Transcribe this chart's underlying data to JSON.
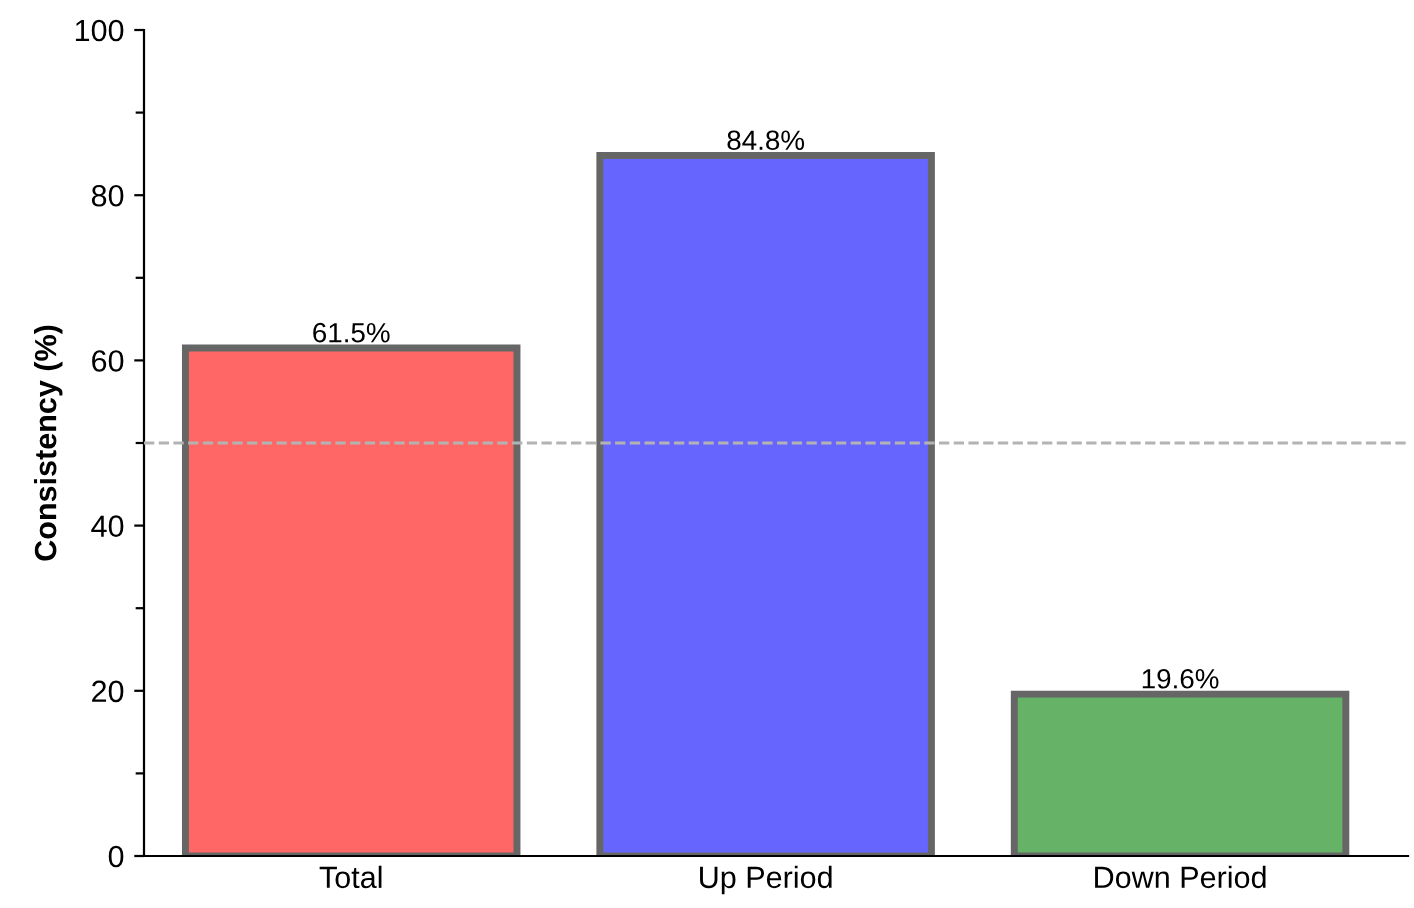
{
  "chart_data": {
    "type": "bar",
    "ylabel": "Consistency (%)",
    "categories": [
      "Total",
      "Up Period",
      "Down Period"
    ],
    "values": [
      61.5,
      84.8,
      19.6
    ],
    "colors": [
      "#ff6666",
      "#6666ff",
      "#66b266"
    ],
    "value_labels": [
      "61.5%",
      "84.8%",
      "19.6%"
    ],
    "ylim": [
      0,
      100
    ],
    "yticks": [
      0,
      {
        "value": 10,
        "label": null
      },
      20,
      {
        "value": 30,
        "label": null
      },
      40,
      {
        "value": 50,
        "label": null
      },
      60,
      {
        "value": 70,
        "label": null
      },
      80,
      {
        "value": 90,
        "label": null
      },
      100
    ],
    "ref_lines": [
      {
        "axis": "y",
        "value": 50,
        "label": null,
        "color": "#b3b3b3",
        "line_style": "dashed"
      }
    ],
    "grid": false,
    "legend": false
  }
}
